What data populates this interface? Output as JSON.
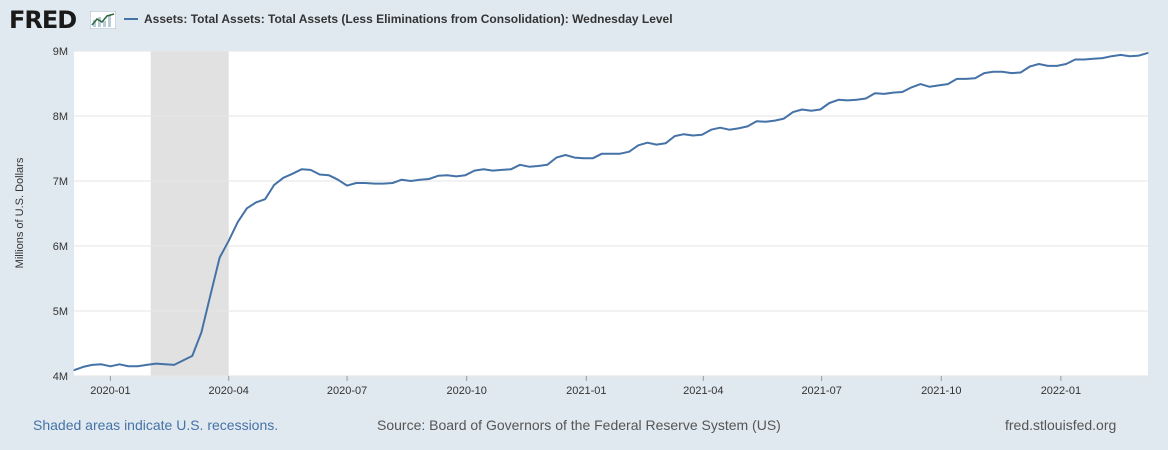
{
  "header": {
    "logo_text": "FRED",
    "legend_label": "Assets: Total Assets: Total Assets (Less Eliminations from Consolidation): Wednesday Level"
  },
  "footer": {
    "recession_note": "Shaded areas indicate U.S. recessions.",
    "source": "Source: Board of Governors of the Federal Reserve System (US)",
    "site": "fred.stlouisfed.org"
  },
  "colors": {
    "series": "#4572a7",
    "recession": "#e1e1e1",
    "grid": "#e6e6e6",
    "page_background": "#e1e9f0"
  },
  "chart_data": {
    "type": "line",
    "ylabel": "Millions of U.S. Dollars",
    "ylim": [
      4,
      9
    ],
    "yticks": [
      4,
      5,
      6,
      7,
      8,
      9
    ],
    "ytick_labels": [
      "4M",
      "5M",
      "6M",
      "7M",
      "8M",
      "9M"
    ],
    "xlim": [
      "2019-12-04",
      "2022-03-09"
    ],
    "xticks": [
      "2020-01-01",
      "2020-04-01",
      "2020-07-01",
      "2020-10-01",
      "2021-01-01",
      "2021-04-01",
      "2021-07-01",
      "2021-10-01",
      "2022-01-01"
    ],
    "xtick_labels": [
      "2020-01",
      "2020-04",
      "2020-07",
      "2020-10",
      "2021-01",
      "2021-04",
      "2021-07",
      "2021-10",
      "2022-01"
    ],
    "recessions": [
      {
        "start": "2020-02-01",
        "end": "2020-04-01"
      }
    ],
    "grid": true,
    "legend_position": "top",
    "series": [
      {
        "name": "Assets: Total Assets: Total Assets (Less Eliminations from Consolidation): Wednesday Level",
        "x": [
          "2019-12-04",
          "2019-12-11",
          "2019-12-18",
          "2019-12-25",
          "2020-01-01",
          "2020-01-08",
          "2020-01-15",
          "2020-01-22",
          "2020-01-29",
          "2020-02-05",
          "2020-02-12",
          "2020-02-19",
          "2020-02-26",
          "2020-03-04",
          "2020-03-11",
          "2020-03-18",
          "2020-03-25",
          "2020-04-01",
          "2020-04-08",
          "2020-04-15",
          "2020-04-22",
          "2020-04-29",
          "2020-05-06",
          "2020-05-13",
          "2020-05-20",
          "2020-05-27",
          "2020-06-03",
          "2020-06-10",
          "2020-06-17",
          "2020-06-24",
          "2020-07-01",
          "2020-07-08",
          "2020-07-15",
          "2020-07-22",
          "2020-07-29",
          "2020-08-05",
          "2020-08-12",
          "2020-08-19",
          "2020-08-26",
          "2020-09-02",
          "2020-09-09",
          "2020-09-16",
          "2020-09-23",
          "2020-09-30",
          "2020-10-07",
          "2020-10-14",
          "2020-10-21",
          "2020-10-28",
          "2020-11-04",
          "2020-11-11",
          "2020-11-18",
          "2020-11-25",
          "2020-12-02",
          "2020-12-09",
          "2020-12-16",
          "2020-12-23",
          "2020-12-30",
          "2021-01-06",
          "2021-01-13",
          "2021-01-20",
          "2021-01-27",
          "2021-02-03",
          "2021-02-10",
          "2021-02-17",
          "2021-02-24",
          "2021-03-03",
          "2021-03-10",
          "2021-03-17",
          "2021-03-24",
          "2021-03-31",
          "2021-04-07",
          "2021-04-14",
          "2021-04-21",
          "2021-04-28",
          "2021-05-05",
          "2021-05-12",
          "2021-05-19",
          "2021-05-26",
          "2021-06-02",
          "2021-06-09",
          "2021-06-16",
          "2021-06-23",
          "2021-06-30",
          "2021-07-07",
          "2021-07-14",
          "2021-07-21",
          "2021-07-28",
          "2021-08-04",
          "2021-08-11",
          "2021-08-18",
          "2021-08-25",
          "2021-09-01",
          "2021-09-08",
          "2021-09-15",
          "2021-09-22",
          "2021-09-29",
          "2021-10-06",
          "2021-10-13",
          "2021-10-20",
          "2021-10-27",
          "2021-11-03",
          "2021-11-10",
          "2021-11-17",
          "2021-11-24",
          "2021-12-01",
          "2021-12-08",
          "2021-12-15",
          "2021-12-22",
          "2021-12-29",
          "2022-01-05",
          "2022-01-12",
          "2022-01-19",
          "2022-01-26",
          "2022-02-02",
          "2022-02-09",
          "2022-02-16",
          "2022-02-23",
          "2022-03-02",
          "2022-03-09"
        ],
        "values": [
          4.09,
          4.14,
          4.17,
          4.18,
          4.15,
          4.18,
          4.15,
          4.15,
          4.17,
          4.19,
          4.18,
          4.17,
          4.24,
          4.31,
          4.67,
          5.25,
          5.82,
          6.08,
          6.37,
          6.58,
          6.67,
          6.72,
          6.94,
          7.05,
          7.11,
          7.18,
          7.17,
          7.1,
          7.09,
          7.02,
          6.93,
          6.97,
          6.97,
          6.96,
          6.96,
          6.97,
          7.02,
          7.0,
          7.02,
          7.03,
          7.08,
          7.09,
          7.07,
          7.09,
          7.16,
          7.18,
          7.16,
          7.17,
          7.18,
          7.25,
          7.22,
          7.23,
          7.25,
          7.36,
          7.4,
          7.36,
          7.35,
          7.35,
          7.42,
          7.42,
          7.42,
          7.45,
          7.55,
          7.59,
          7.56,
          7.58,
          7.69,
          7.72,
          7.7,
          7.71,
          7.79,
          7.82,
          7.79,
          7.81,
          7.84,
          7.92,
          7.91,
          7.93,
          7.96,
          8.06,
          8.1,
          8.08,
          8.1,
          8.2,
          8.25,
          8.24,
          8.25,
          8.27,
          8.35,
          8.34,
          8.36,
          8.37,
          8.44,
          8.49,
          8.45,
          8.47,
          8.49,
          8.57,
          8.57,
          8.58,
          8.66,
          8.68,
          8.68,
          8.66,
          8.67,
          8.76,
          8.8,
          8.77,
          8.77,
          8.8,
          8.87,
          8.87,
          8.88,
          8.89,
          8.92,
          8.94,
          8.92,
          8.93,
          8.97
        ]
      }
    ]
  }
}
